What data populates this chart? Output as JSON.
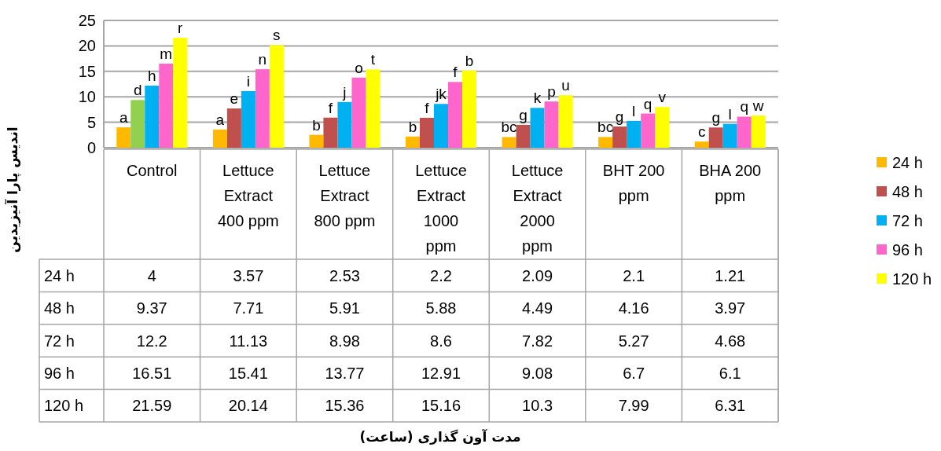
{
  "chart_data": {
    "type": "bar",
    "ylabel": "اندیس پارا آنیزیدین",
    "categories": [
      "Control",
      "Lettuce Extract 400 ppm",
      "Lettuce Extract 800 ppm",
      "Lettuce Extract 1000 ppm",
      "Lettuce Extract 2000 ppm",
      "BHT 200 ppm",
      "BHA 200 ppm"
    ],
    "series": [
      {
        "name": "24 h",
        "color": "#ffb900",
        "values": [
          4,
          3.57,
          2.53,
          2.2,
          2.09,
          2.1,
          1.21
        ]
      },
      {
        "name": "48 h",
        "color": "#c0504d",
        "colors": [
          "#92d050",
          "#c0504d",
          "#c0504d",
          "#c0504d",
          "#c0504d",
          "#c0504d",
          "#c0504d"
        ],
        "values": [
          9.37,
          7.71,
          5.91,
          5.88,
          4.49,
          4.16,
          3.97
        ]
      },
      {
        "name": "72 h",
        "color": "#00b0f0",
        "values": [
          12.2,
          11.13,
          8.98,
          8.6,
          7.82,
          5.27,
          4.68
        ]
      },
      {
        "name": "96 h",
        "color": "#ff66cc",
        "values": [
          16.51,
          15.41,
          13.77,
          12.91,
          9.08,
          6.7,
          6.1
        ]
      },
      {
        "name": "120 h",
        "color": "#ffff00",
        "values": [
          21.59,
          20.14,
          15.36,
          15.16,
          10.3,
          7.99,
          6.31
        ]
      }
    ],
    "ylim": [
      0,
      25
    ],
    "yticks": [
      0,
      5,
      10,
      15,
      20,
      25
    ],
    "grid": "y",
    "legend": "right",
    "data_labels": true,
    "annotations": [
      "a",
      "d",
      "h",
      "m",
      "r",
      "a",
      "e",
      "i",
      "n",
      "s",
      "b",
      "f",
      "j",
      "o",
      "t",
      "b",
      "f",
      "jk",
      "f",
      "b",
      "bc",
      "g",
      "k",
      "p",
      "u",
      "bc",
      "g",
      "l",
      "q",
      "v",
      "c",
      "g",
      "l",
      "q",
      "w",
      "مدت آون گذاری (ساعت)"
    ]
  }
}
